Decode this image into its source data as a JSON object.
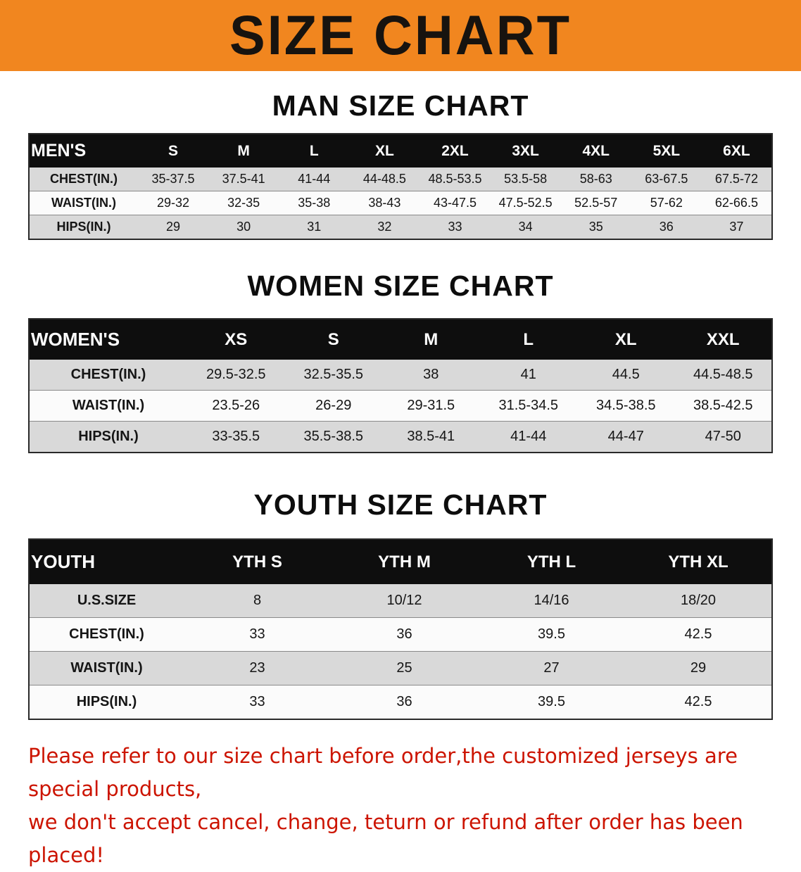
{
  "banner": {
    "title": "SIZE CHART",
    "bg_color": "#f1861f",
    "text_color": "#17130f"
  },
  "sections": [
    {
      "id": "men",
      "heading": "MAN SIZE CHART",
      "table": {
        "header": [
          "MEN'S",
          "S",
          "M",
          "L",
          "XL",
          "2XL",
          "3XL",
          "4XL",
          "5XL",
          "6XL"
        ],
        "rows": [
          [
            "CHEST(IN.)",
            "35-37.5",
            "37.5-41",
            "41-44",
            "44-48.5",
            "48.5-53.5",
            "53.5-58",
            "58-63",
            "63-67.5",
            "67.5-72"
          ],
          [
            "WAIST(IN.)",
            "29-32",
            "32-35",
            "35-38",
            "38-43",
            "43-47.5",
            "47.5-52.5",
            "52.5-57",
            "57-62",
            "62-66.5"
          ],
          [
            "HIPS(IN.)",
            "29",
            "30",
            "31",
            "32",
            "33",
            "34",
            "35",
            "36",
            "37"
          ]
        ]
      }
    },
    {
      "id": "women",
      "heading": "WOMEN SIZE CHART",
      "table": {
        "header": [
          "WOMEN'S",
          "XS",
          "S",
          "M",
          "L",
          "XL",
          "XXL"
        ],
        "rows": [
          [
            "CHEST(IN.)",
            "29.5-32.5",
            "32.5-35.5",
            "38",
            "41",
            "44.5",
            "44.5-48.5"
          ],
          [
            "WAIST(IN.)",
            "23.5-26",
            "26-29",
            "29-31.5",
            "31.5-34.5",
            "34.5-38.5",
            "38.5-42.5"
          ],
          [
            "HIPS(IN.)",
            "33-35.5",
            "35.5-38.5",
            "38.5-41",
            "41-44",
            "44-47",
            "47-50"
          ]
        ]
      }
    },
    {
      "id": "youth",
      "heading": "YOUTH SIZE CHART",
      "table": {
        "header": [
          "YOUTH",
          "YTH S",
          "YTH M",
          "YTH L",
          "YTH XL"
        ],
        "rows": [
          [
            "U.S.SIZE",
            "8",
            "10/12",
            "14/16",
            "18/20"
          ],
          [
            "CHEST(IN.)",
            "33",
            "36",
            "39.5",
            "42.5"
          ],
          [
            "WAIST(IN.)",
            "23",
            "25",
            "27",
            "29"
          ],
          [
            "HIPS(IN.)",
            "33",
            "36",
            "39.5",
            "42.5"
          ]
        ]
      }
    }
  ],
  "footer": {
    "color": "#cc1400",
    "lines": [
      "Please refer to our size chart before order,the customized jerseys are special products,",
      "we don't accept cancel, change, teturn or refund after order has been placed!"
    ]
  }
}
